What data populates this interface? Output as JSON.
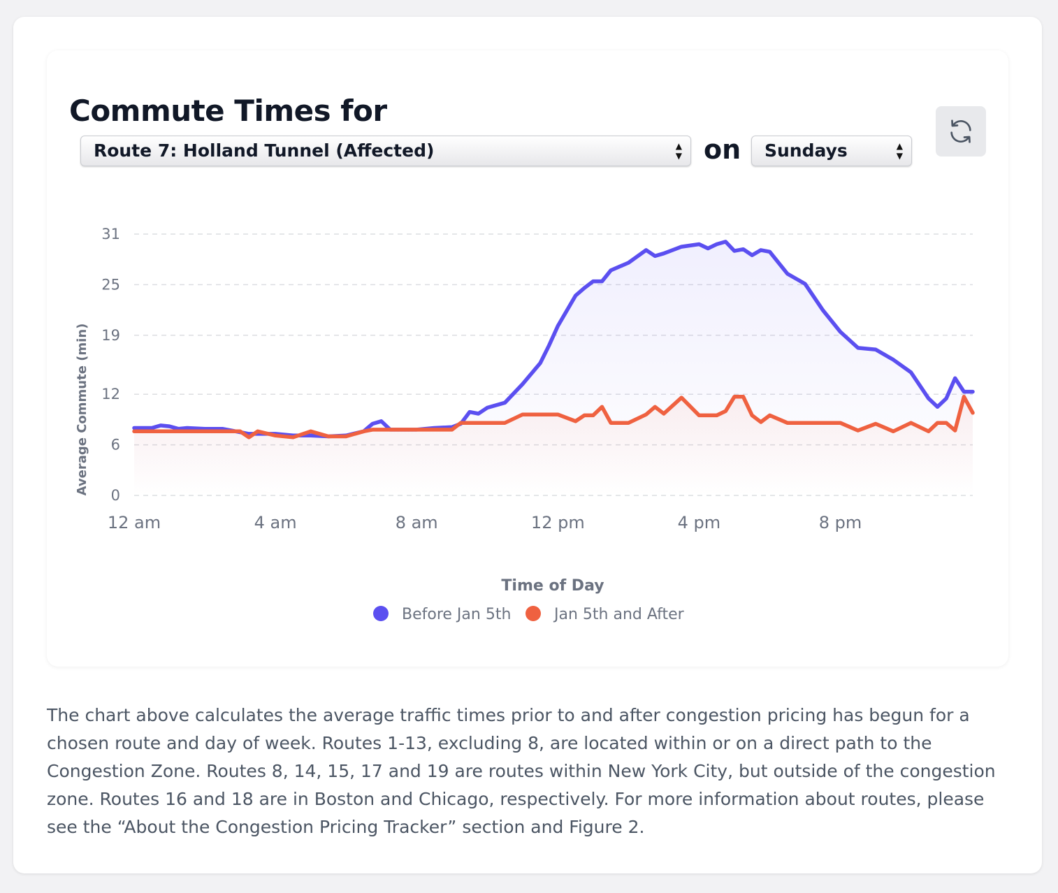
{
  "header": {
    "title": "Commute Times for",
    "route_select_value": "Route 7: Holland Tunnel (Affected)",
    "on_label": "on",
    "day_select_value": "Sundays",
    "refresh_icon": "refresh-icon"
  },
  "caption": "The chart above calculates the average traffic times prior to and after congestion pricing has begun for a chosen route and day of week. Routes 1-13, excluding 8, are located within or on a direct path to the Congestion Zone. Routes 8, 14, 15, 17 and 19 are routes within New York City, but outside of the congestion zone. Routes 16 and 18 are in Boston and Chicago, respectively. For more information about routes, please see the “About the Congestion Pricing Tracker” section and Figure 2.",
  "colors": {
    "before": "#5b4ff0",
    "after": "#ef6140",
    "grid": "#dcdde1",
    "axis_text": "#6b7280"
  },
  "chart_data": {
    "type": "line",
    "xlabel": "Time of Day",
    "ylabel": "Average Commute (min)",
    "x_ticks": [
      "12 am",
      "4 am",
      "8 am",
      "12 pm",
      "4 pm",
      "8 pm"
    ],
    "x_tick_hours": [
      0,
      4,
      8,
      12,
      16,
      20
    ],
    "xlim": [
      0,
      23.75
    ],
    "y_ticks": [
      0,
      6,
      12,
      19,
      25,
      31
    ],
    "ylim": [
      0,
      31
    ],
    "grid": true,
    "legend_position": "bottom",
    "x": [
      0,
      0.5,
      0.75,
      1,
      1.25,
      1.5,
      2,
      2.5,
      3,
      3.25,
      3.5,
      4,
      4.5,
      5,
      5.5,
      6,
      6.5,
      6.75,
      7,
      7.25,
      7.5,
      8,
      8.5,
      9,
      9.25,
      9.5,
      9.75,
      10,
      10.5,
      11,
      11.5,
      11.75,
      12,
      12.5,
      12.75,
      13,
      13.25,
      13.5,
      14,
      14.5,
      14.75,
      15,
      15.5,
      16,
      16.25,
      16.5,
      16.75,
      17,
      17.25,
      17.5,
      17.75,
      18,
      18.5,
      19,
      19.5,
      20,
      20.5,
      21,
      21.5,
      22,
      22.5,
      22.75,
      23,
      23.25,
      23.5,
      23.75
    ],
    "series": [
      {
        "name": "Before Jan 5th",
        "values": [
          8,
          8,
          8.3,
          8.2,
          7.9,
          8,
          7.9,
          7.9,
          7.5,
          7.3,
          7.3,
          7.3,
          7.1,
          7.1,
          7,
          7.1,
          7.6,
          8.5,
          8.8,
          7.8,
          7.8,
          7.8,
          8,
          8.1,
          8.5,
          9.9,
          9.7,
          10.4,
          11,
          13.2,
          15.7,
          17.8,
          20.1,
          23.7,
          24.6,
          25.4,
          25.4,
          26.7,
          27.6,
          29.1,
          28.4,
          28.7,
          29.5,
          29.8,
          29.3,
          29.8,
          30.1,
          29,
          29.2,
          28.5,
          29.1,
          28.9,
          26.3,
          25.1,
          22,
          19.4,
          17.5,
          17.3,
          16.1,
          14.6,
          11.5,
          10.5,
          11.5,
          13.9,
          12.3,
          12.3
        ]
      },
      {
        "name": "Jan 5th and After",
        "values": [
          7.6,
          7.6,
          7.6,
          7.6,
          7.6,
          7.6,
          7.6,
          7.6,
          7.6,
          6.9,
          7.6,
          7.1,
          6.9,
          7.6,
          7,
          7,
          7.6,
          7.8,
          7.8,
          7.8,
          7.8,
          7.8,
          7.8,
          7.8,
          8.6,
          8.6,
          8.6,
          8.6,
          8.6,
          9.6,
          9.6,
          9.6,
          9.6,
          8.8,
          9.5,
          9.5,
          10.5,
          8.6,
          8.6,
          9.6,
          10.5,
          9.7,
          11.6,
          9.5,
          9.5,
          9.5,
          10,
          11.7,
          11.7,
          9.5,
          8.7,
          9.5,
          8.6,
          8.6,
          8.6,
          8.6,
          7.7,
          8.5,
          7.6,
          8.6,
          7.6,
          8.6,
          8.6,
          7.7,
          11.7,
          9.8
        ]
      }
    ]
  }
}
